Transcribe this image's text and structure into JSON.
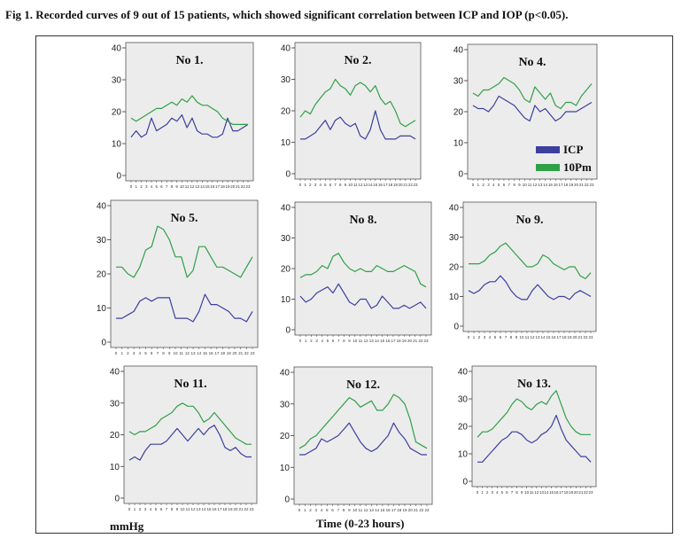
{
  "caption": "Fig 1. Recorded curves of 9 out of 15 patients, which showed significant correlation between ICP and IOP (p<0.05).",
  "unit_label": "mmHg",
  "x_axis_label": "Time (0-23 hours)",
  "legend": {
    "icp": "ICP",
    "iop": "10Pm"
  },
  "colors": {
    "icp": "#3b3f9e",
    "iop": "#2fa046",
    "panel_bg": "#ececec"
  },
  "chart_data": [
    {
      "type": "line",
      "title": "No 1.",
      "ylim": [
        0,
        40
      ],
      "yticks": [
        0,
        10,
        20,
        30,
        40
      ],
      "x": [
        0,
        1,
        2,
        3,
        4,
        5,
        6,
        7,
        8,
        9,
        10,
        11,
        12,
        13,
        14,
        15,
        16,
        17,
        18,
        19,
        20,
        21,
        22,
        23
      ],
      "series": [
        {
          "name": "ICP",
          "values": [
            12,
            14,
            12,
            13,
            18,
            14,
            15,
            16,
            18,
            17,
            19,
            15,
            18,
            14,
            13,
            13,
            12,
            12,
            13,
            18,
            14,
            14,
            15,
            16
          ]
        },
        {
          "name": "10Pm",
          "values": [
            18,
            17,
            18,
            19,
            20,
            21,
            21,
            22,
            23,
            22,
            24,
            23,
            25,
            23,
            22,
            22,
            21,
            20,
            18,
            17,
            16,
            16,
            16,
            16
          ]
        }
      ]
    },
    {
      "type": "line",
      "title": "No 2.",
      "ylim": [
        0,
        40
      ],
      "yticks": [
        0,
        10,
        20,
        30,
        40
      ],
      "x": [
        0,
        1,
        2,
        3,
        4,
        5,
        6,
        7,
        8,
        9,
        10,
        11,
        12,
        13,
        14,
        15,
        16,
        17,
        18,
        19,
        20,
        21,
        22,
        23
      ],
      "series": [
        {
          "name": "ICP",
          "values": [
            11,
            11,
            12,
            13,
            15,
            17,
            14,
            17,
            18,
            16,
            15,
            16,
            12,
            11,
            14,
            20,
            14,
            11,
            11,
            11,
            12,
            12,
            12,
            11
          ]
        },
        {
          "name": "10Pm",
          "values": [
            18,
            20,
            19,
            22,
            24,
            26,
            27,
            30,
            28,
            27,
            25,
            28,
            29,
            28,
            26,
            28,
            24,
            22,
            23,
            20,
            16,
            15,
            16,
            17
          ]
        }
      ]
    },
    {
      "type": "line",
      "title": "No 4.",
      "ylim": [
        0,
        40
      ],
      "yticks": [
        0,
        10,
        20,
        30,
        40
      ],
      "x": [
        0,
        1,
        2,
        3,
        4,
        5,
        6,
        7,
        8,
        9,
        10,
        11,
        12,
        13,
        14,
        15,
        16,
        17,
        18,
        19,
        20,
        21,
        22,
        23
      ],
      "series": [
        {
          "name": "ICP",
          "values": [
            22,
            21,
            21,
            20,
            22,
            25,
            24,
            23,
            22,
            20,
            18,
            17,
            22,
            20,
            21,
            19,
            17,
            18,
            20,
            20,
            20,
            21,
            22,
            23
          ]
        },
        {
          "name": "10Pm",
          "values": [
            26,
            25,
            27,
            27,
            28,
            29,
            31,
            30,
            29,
            27,
            24,
            23,
            28,
            26,
            24,
            26,
            22,
            21,
            23,
            23,
            22,
            25,
            27,
            29
          ]
        }
      ]
    },
    {
      "type": "line",
      "title": "No 5.",
      "ylim": [
        0,
        40
      ],
      "yticks": [
        0,
        10,
        20,
        30,
        40
      ],
      "x": [
        0,
        1,
        2,
        3,
        4,
        5,
        6,
        7,
        8,
        9,
        10,
        11,
        12,
        13,
        14,
        15,
        16,
        17,
        18,
        19,
        20,
        21,
        22,
        23
      ],
      "series": [
        {
          "name": "ICP",
          "values": [
            7,
            7,
            8,
            9,
            12,
            13,
            12,
            13,
            13,
            13,
            7,
            7,
            7,
            6,
            9,
            14,
            11,
            11,
            10,
            9,
            7,
            7,
            6,
            9
          ]
        },
        {
          "name": "10Pm",
          "values": [
            22,
            22,
            20,
            19,
            22,
            27,
            28,
            34,
            33,
            30,
            25,
            25,
            19,
            21,
            28,
            28,
            25,
            22,
            22,
            21,
            20,
            19,
            22,
            25
          ]
        }
      ]
    },
    {
      "type": "line",
      "title": "No 8.",
      "ylim": [
        0,
        40
      ],
      "yticks": [
        0,
        10,
        20,
        30,
        40
      ],
      "x": [
        0,
        1,
        2,
        3,
        4,
        5,
        6,
        7,
        8,
        9,
        10,
        11,
        12,
        13,
        14,
        15,
        16,
        17,
        18,
        19,
        20,
        21,
        22,
        23
      ],
      "series": [
        {
          "name": "ICP",
          "values": [
            11,
            9,
            10,
            12,
            13,
            14,
            12,
            15,
            12,
            9,
            8,
            10,
            10,
            7,
            8,
            11,
            9,
            7,
            7,
            8,
            7,
            8,
            9,
            7
          ]
        },
        {
          "name": "10Pm",
          "values": [
            17,
            18,
            18,
            19,
            21,
            20,
            24,
            25,
            22,
            20,
            19,
            20,
            19,
            19,
            21,
            20,
            19,
            19,
            20,
            21,
            20,
            19,
            15,
            14
          ]
        }
      ]
    },
    {
      "type": "line",
      "title": "No 9.",
      "ylim": [
        0,
        40
      ],
      "yticks": [
        0,
        10,
        20,
        30,
        40
      ],
      "x": [
        0,
        1,
        2,
        3,
        4,
        5,
        6,
        7,
        8,
        9,
        10,
        11,
        12,
        13,
        14,
        15,
        16,
        17,
        18,
        19,
        20,
        21,
        22,
        23
      ],
      "series": [
        {
          "name": "ICP",
          "values": [
            12,
            11,
            12,
            14,
            15,
            15,
            17,
            15,
            12,
            10,
            9,
            9,
            12,
            14,
            12,
            10,
            9,
            10,
            10,
            9,
            11,
            12,
            11,
            10
          ]
        },
        {
          "name": "10Pm",
          "values": [
            21,
            21,
            21,
            22,
            24,
            25,
            27,
            28,
            26,
            24,
            22,
            20,
            20,
            21,
            24,
            23,
            21,
            20,
            19,
            20,
            20,
            17,
            16,
            18
          ]
        }
      ]
    },
    {
      "type": "line",
      "title": "No 11.",
      "ylim": [
        0,
        40
      ],
      "yticks": [
        0,
        10,
        20,
        30,
        40
      ],
      "x": [
        0,
        1,
        2,
        3,
        4,
        5,
        6,
        7,
        8,
        9,
        10,
        11,
        12,
        13,
        14,
        15,
        16,
        17,
        18,
        19,
        20,
        21,
        22,
        23
      ],
      "series": [
        {
          "name": "ICP",
          "values": [
            12,
            13,
            12,
            15,
            17,
            17,
            17,
            18,
            20,
            22,
            20,
            18,
            20,
            22,
            20,
            22,
            23,
            20,
            16,
            15,
            16,
            14,
            13,
            13
          ]
        },
        {
          "name": "10Pm",
          "values": [
            21,
            20,
            21,
            21,
            22,
            23,
            25,
            26,
            27,
            29,
            30,
            29,
            29,
            27,
            24,
            25,
            27,
            25,
            23,
            21,
            19,
            18,
            17,
            17
          ]
        }
      ]
    },
    {
      "type": "line",
      "title": "No 12.",
      "ylim": [
        0,
        40
      ],
      "yticks": [
        0,
        10,
        20,
        30,
        40
      ],
      "x": [
        0,
        1,
        2,
        3,
        4,
        5,
        6,
        7,
        8,
        9,
        10,
        11,
        12,
        13,
        14,
        15,
        16,
        17,
        18,
        19,
        20,
        21,
        22,
        23
      ],
      "series": [
        {
          "name": "ICP",
          "values": [
            14,
            14,
            15,
            16,
            19,
            18,
            19,
            20,
            22,
            24,
            21,
            18,
            16,
            15,
            16,
            18,
            20,
            24,
            21,
            19,
            16,
            15,
            14,
            14
          ]
        },
        {
          "name": "10Pm",
          "values": [
            16,
            17,
            19,
            20,
            22,
            24,
            26,
            28,
            30,
            32,
            31,
            29,
            30,
            31,
            28,
            28,
            30,
            33,
            32,
            30,
            25,
            18,
            17,
            16
          ]
        }
      ]
    },
    {
      "type": "line",
      "title": "No 13.",
      "ylim": [
        0,
        40
      ],
      "yticks": [
        0,
        10,
        20,
        30,
        40
      ],
      "x": [
        0,
        1,
        2,
        3,
        4,
        5,
        6,
        7,
        8,
        9,
        10,
        11,
        12,
        13,
        14,
        15,
        16,
        17,
        18,
        19,
        20,
        21,
        22,
        23
      ],
      "series": [
        {
          "name": "ICP",
          "values": [
            7,
            7,
            9,
            11,
            13,
            15,
            16,
            18,
            18,
            17,
            15,
            14,
            15,
            17,
            18,
            20,
            24,
            19,
            15,
            13,
            11,
            9,
            9,
            7
          ]
        },
        {
          "name": "10Pm",
          "values": [
            16,
            18,
            18,
            19,
            21,
            23,
            25,
            28,
            30,
            29,
            27,
            26,
            28,
            29,
            28,
            31,
            33,
            28,
            23,
            20,
            18,
            17,
            17,
            17
          ]
        }
      ]
    }
  ]
}
